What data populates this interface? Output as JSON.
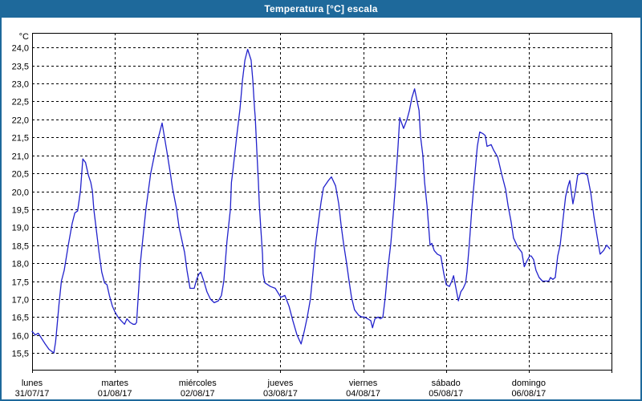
{
  "window": {
    "title": "Temperatura [°C] escala"
  },
  "colors": {
    "titlebar_bg": "#1e699b",
    "titlebar_text": "#ffffff",
    "window_border": "#1e699b",
    "plot_border": "#000000",
    "grid": "#000000",
    "line": "#2222cc",
    "label_text": "#000000",
    "background": "#ffffff"
  },
  "chart_data": {
    "type": "line",
    "title": "Temperatura [°C] escala",
    "grid": "dashed",
    "legend": "none",
    "y_axis": {
      "unit": "°C",
      "min": 15.5,
      "max": 24.0,
      "step": 0.5,
      "tick_labels": [
        "24,0",
        "23,5",
        "23,0",
        "22,5",
        "22,0",
        "21,5",
        "21,0",
        "20,5",
        "20,0",
        "19,5",
        "19,0",
        "18,5",
        "18,0",
        "17,5",
        "17,0",
        "16,5",
        "16,0",
        "15,5"
      ]
    },
    "x_axis": {
      "hours_total": 168,
      "days": [
        {
          "name": "lunes",
          "date": "31/07/17"
        },
        {
          "name": "martes",
          "date": "01/08/17"
        },
        {
          "name": "miércoles",
          "date": "02/08/17"
        },
        {
          "name": "jueves",
          "date": "03/08/17"
        },
        {
          "name": "viernes",
          "date": "04/08/17"
        },
        {
          "name": "sábado",
          "date": "05/08/17"
        },
        {
          "name": "domingo",
          "date": "06/08/17"
        }
      ]
    },
    "series": [
      {
        "name": "Temperatura",
        "unit": "°C",
        "points_hours_temp": [
          [
            0,
            16.1
          ],
          [
            0.9,
            16.0
          ],
          [
            1.8,
            16.05
          ],
          [
            2.8,
            15.9
          ],
          [
            3.8,
            15.75
          ],
          [
            4.9,
            15.6
          ],
          [
            6.3,
            15.5
          ],
          [
            6.8,
            15.8
          ],
          [
            7.0,
            16.0
          ],
          [
            7.8,
            16.85
          ],
          [
            8.5,
            17.5
          ],
          [
            9.3,
            17.8
          ],
          [
            10.5,
            18.5
          ],
          [
            11.6,
            19.1
          ],
          [
            12.4,
            19.4
          ],
          [
            13.2,
            19.45
          ],
          [
            14.0,
            20.0
          ],
          [
            14.7,
            20.9
          ],
          [
            15.5,
            20.8
          ],
          [
            16.3,
            20.45
          ],
          [
            17.0,
            20.25
          ],
          [
            17.5,
            20.0
          ],
          [
            17.9,
            19.5
          ],
          [
            18.6,
            18.95
          ],
          [
            19.4,
            18.3
          ],
          [
            20.2,
            17.75
          ],
          [
            21.0,
            17.45
          ],
          [
            21.7,
            17.4
          ],
          [
            22.4,
            17.1
          ],
          [
            23.3,
            16.8
          ],
          [
            24.0,
            16.65
          ],
          [
            24.9,
            16.5
          ],
          [
            25.8,
            16.4
          ],
          [
            26.8,
            16.3
          ],
          [
            27.5,
            16.45
          ],
          [
            28.4,
            16.35
          ],
          [
            29.3,
            16.3
          ],
          [
            29.9,
            16.3
          ],
          [
            30.3,
            16.35
          ],
          [
            31.0,
            17.4
          ],
          [
            31.4,
            18.0
          ],
          [
            31.8,
            18.4
          ],
          [
            33.0,
            19.5
          ],
          [
            34.4,
            20.5
          ],
          [
            36.1,
            21.3
          ],
          [
            37.7,
            21.9
          ],
          [
            38.4,
            21.5
          ],
          [
            39.1,
            21.1
          ],
          [
            40.0,
            20.55
          ],
          [
            40.7,
            20.1
          ],
          [
            41.9,
            19.5
          ],
          [
            42.6,
            19.0
          ],
          [
            44.2,
            18.3
          ],
          [
            44.9,
            17.8
          ],
          [
            45.8,
            17.3
          ],
          [
            47.0,
            17.3
          ],
          [
            47.7,
            17.55
          ],
          [
            48.4,
            17.7
          ],
          [
            48.9,
            17.75
          ],
          [
            49.8,
            17.5
          ],
          [
            50.7,
            17.2
          ],
          [
            51.7,
            17.0
          ],
          [
            52.8,
            16.9
          ],
          [
            54.0,
            16.95
          ],
          [
            54.9,
            17.1
          ],
          [
            55.6,
            17.5
          ],
          [
            56.5,
            18.6
          ],
          [
            57.5,
            19.5
          ],
          [
            57.8,
            20.25
          ],
          [
            58.2,
            20.55
          ],
          [
            59.3,
            21.5
          ],
          [
            60.3,
            22.3
          ],
          [
            61.0,
            23.1
          ],
          [
            61.7,
            23.65
          ],
          [
            62.5,
            23.95
          ],
          [
            63.5,
            23.65
          ],
          [
            64.0,
            23.1
          ],
          [
            64.5,
            22.3
          ],
          [
            64.7,
            22.05
          ],
          [
            65.2,
            21.05
          ],
          [
            65.6,
            20.3
          ],
          [
            65.9,
            19.6
          ],
          [
            66.3,
            19.0
          ],
          [
            66.8,
            18.25
          ],
          [
            67.0,
            17.7
          ],
          [
            67.5,
            17.45
          ],
          [
            69.1,
            17.35
          ],
          [
            70.5,
            17.3
          ],
          [
            72.1,
            17.05
          ],
          [
            73.3,
            17.1
          ],
          [
            74.5,
            16.8
          ],
          [
            75.6,
            16.4
          ],
          [
            76.8,
            16.0
          ],
          [
            78.0,
            15.75
          ],
          [
            78.9,
            16.1
          ],
          [
            79.8,
            16.5
          ],
          [
            80.7,
            17.0
          ],
          [
            81.4,
            17.7
          ],
          [
            82.1,
            18.45
          ],
          [
            83.1,
            19.2
          ],
          [
            83.8,
            19.7
          ],
          [
            84.5,
            20.1
          ],
          [
            85.9,
            20.3
          ],
          [
            86.8,
            20.4
          ],
          [
            88.0,
            20.15
          ],
          [
            88.9,
            19.65
          ],
          [
            89.6,
            19.05
          ],
          [
            90.3,
            18.55
          ],
          [
            91.2,
            18.0
          ],
          [
            91.9,
            17.5
          ],
          [
            92.6,
            17.05
          ],
          [
            93.5,
            16.7
          ],
          [
            94.7,
            16.55
          ],
          [
            95.6,
            16.5
          ],
          [
            96.3,
            16.5
          ],
          [
            97.3,
            16.45
          ],
          [
            98.2,
            16.4
          ],
          [
            98.7,
            16.2
          ],
          [
            99.4,
            16.45
          ],
          [
            100.3,
            16.5
          ],
          [
            101.0,
            16.45
          ],
          [
            101.7,
            16.5
          ],
          [
            102.4,
            17.05
          ],
          [
            103.1,
            17.8
          ],
          [
            104.0,
            18.55
          ],
          [
            104.7,
            19.35
          ],
          [
            105.4,
            20.25
          ],
          [
            106.1,
            21.25
          ],
          [
            106.6,
            22.05
          ],
          [
            107.7,
            21.75
          ],
          [
            108.7,
            22.0
          ],
          [
            109.4,
            22.25
          ],
          [
            110.1,
            22.6
          ],
          [
            110.9,
            22.85
          ],
          [
            112.2,
            22.25
          ],
          [
            112.6,
            21.55
          ],
          [
            113.3,
            21.0
          ],
          [
            113.8,
            20.25
          ],
          [
            114.5,
            19.6
          ],
          [
            115.0,
            19.0
          ],
          [
            115.4,
            18.5
          ],
          [
            115.9,
            18.55
          ],
          [
            116.6,
            18.35
          ],
          [
            117.5,
            18.25
          ],
          [
            118.5,
            18.2
          ],
          [
            119.4,
            17.7
          ],
          [
            120.1,
            17.4
          ],
          [
            121.0,
            17.35
          ],
          [
            121.7,
            17.5
          ],
          [
            122.2,
            17.65
          ],
          [
            122.9,
            17.3
          ],
          [
            123.6,
            16.95
          ],
          [
            124.3,
            17.2
          ],
          [
            125.0,
            17.3
          ],
          [
            125.7,
            17.45
          ],
          [
            126.1,
            17.75
          ],
          [
            126.8,
            18.55
          ],
          [
            127.5,
            19.5
          ],
          [
            128.4,
            20.5
          ],
          [
            129.1,
            21.25
          ],
          [
            129.8,
            21.65
          ],
          [
            130.8,
            21.6
          ],
          [
            131.4,
            21.55
          ],
          [
            131.9,
            21.25
          ],
          [
            133.1,
            21.3
          ],
          [
            133.8,
            21.15
          ],
          [
            135.0,
            20.95
          ],
          [
            136.1,
            20.5
          ],
          [
            137.3,
            20.05
          ],
          [
            138.0,
            19.6
          ],
          [
            138.9,
            19.15
          ],
          [
            139.6,
            18.7
          ],
          [
            140.8,
            18.45
          ],
          [
            142.0,
            18.3
          ],
          [
            142.7,
            17.9
          ],
          [
            143.4,
            18.05
          ],
          [
            144.3,
            18.2
          ],
          [
            144.7,
            18.2
          ],
          [
            145.4,
            18.1
          ],
          [
            146.1,
            17.8
          ],
          [
            147.0,
            17.6
          ],
          [
            148.0,
            17.5
          ],
          [
            148.9,
            17.5
          ],
          [
            149.8,
            17.5
          ],
          [
            150.3,
            17.6
          ],
          [
            151.0,
            17.55
          ],
          [
            151.7,
            17.6
          ],
          [
            152.4,
            18.2
          ],
          [
            153.1,
            18.5
          ],
          [
            153.8,
            19.1
          ],
          [
            154.7,
            19.85
          ],
          [
            155.4,
            20.15
          ],
          [
            155.9,
            20.3
          ],
          [
            156.8,
            19.65
          ],
          [
            157.5,
            20.0
          ],
          [
            158.2,
            20.45
          ],
          [
            159.2,
            20.5
          ],
          [
            160.1,
            20.5
          ],
          [
            161.0,
            20.45
          ],
          [
            162.0,
            19.95
          ],
          [
            162.9,
            19.3
          ],
          [
            163.8,
            18.75
          ],
          [
            164.7,
            18.25
          ],
          [
            165.7,
            18.35
          ],
          [
            166.6,
            18.5
          ],
          [
            167.5,
            18.4
          ]
        ]
      }
    ]
  }
}
